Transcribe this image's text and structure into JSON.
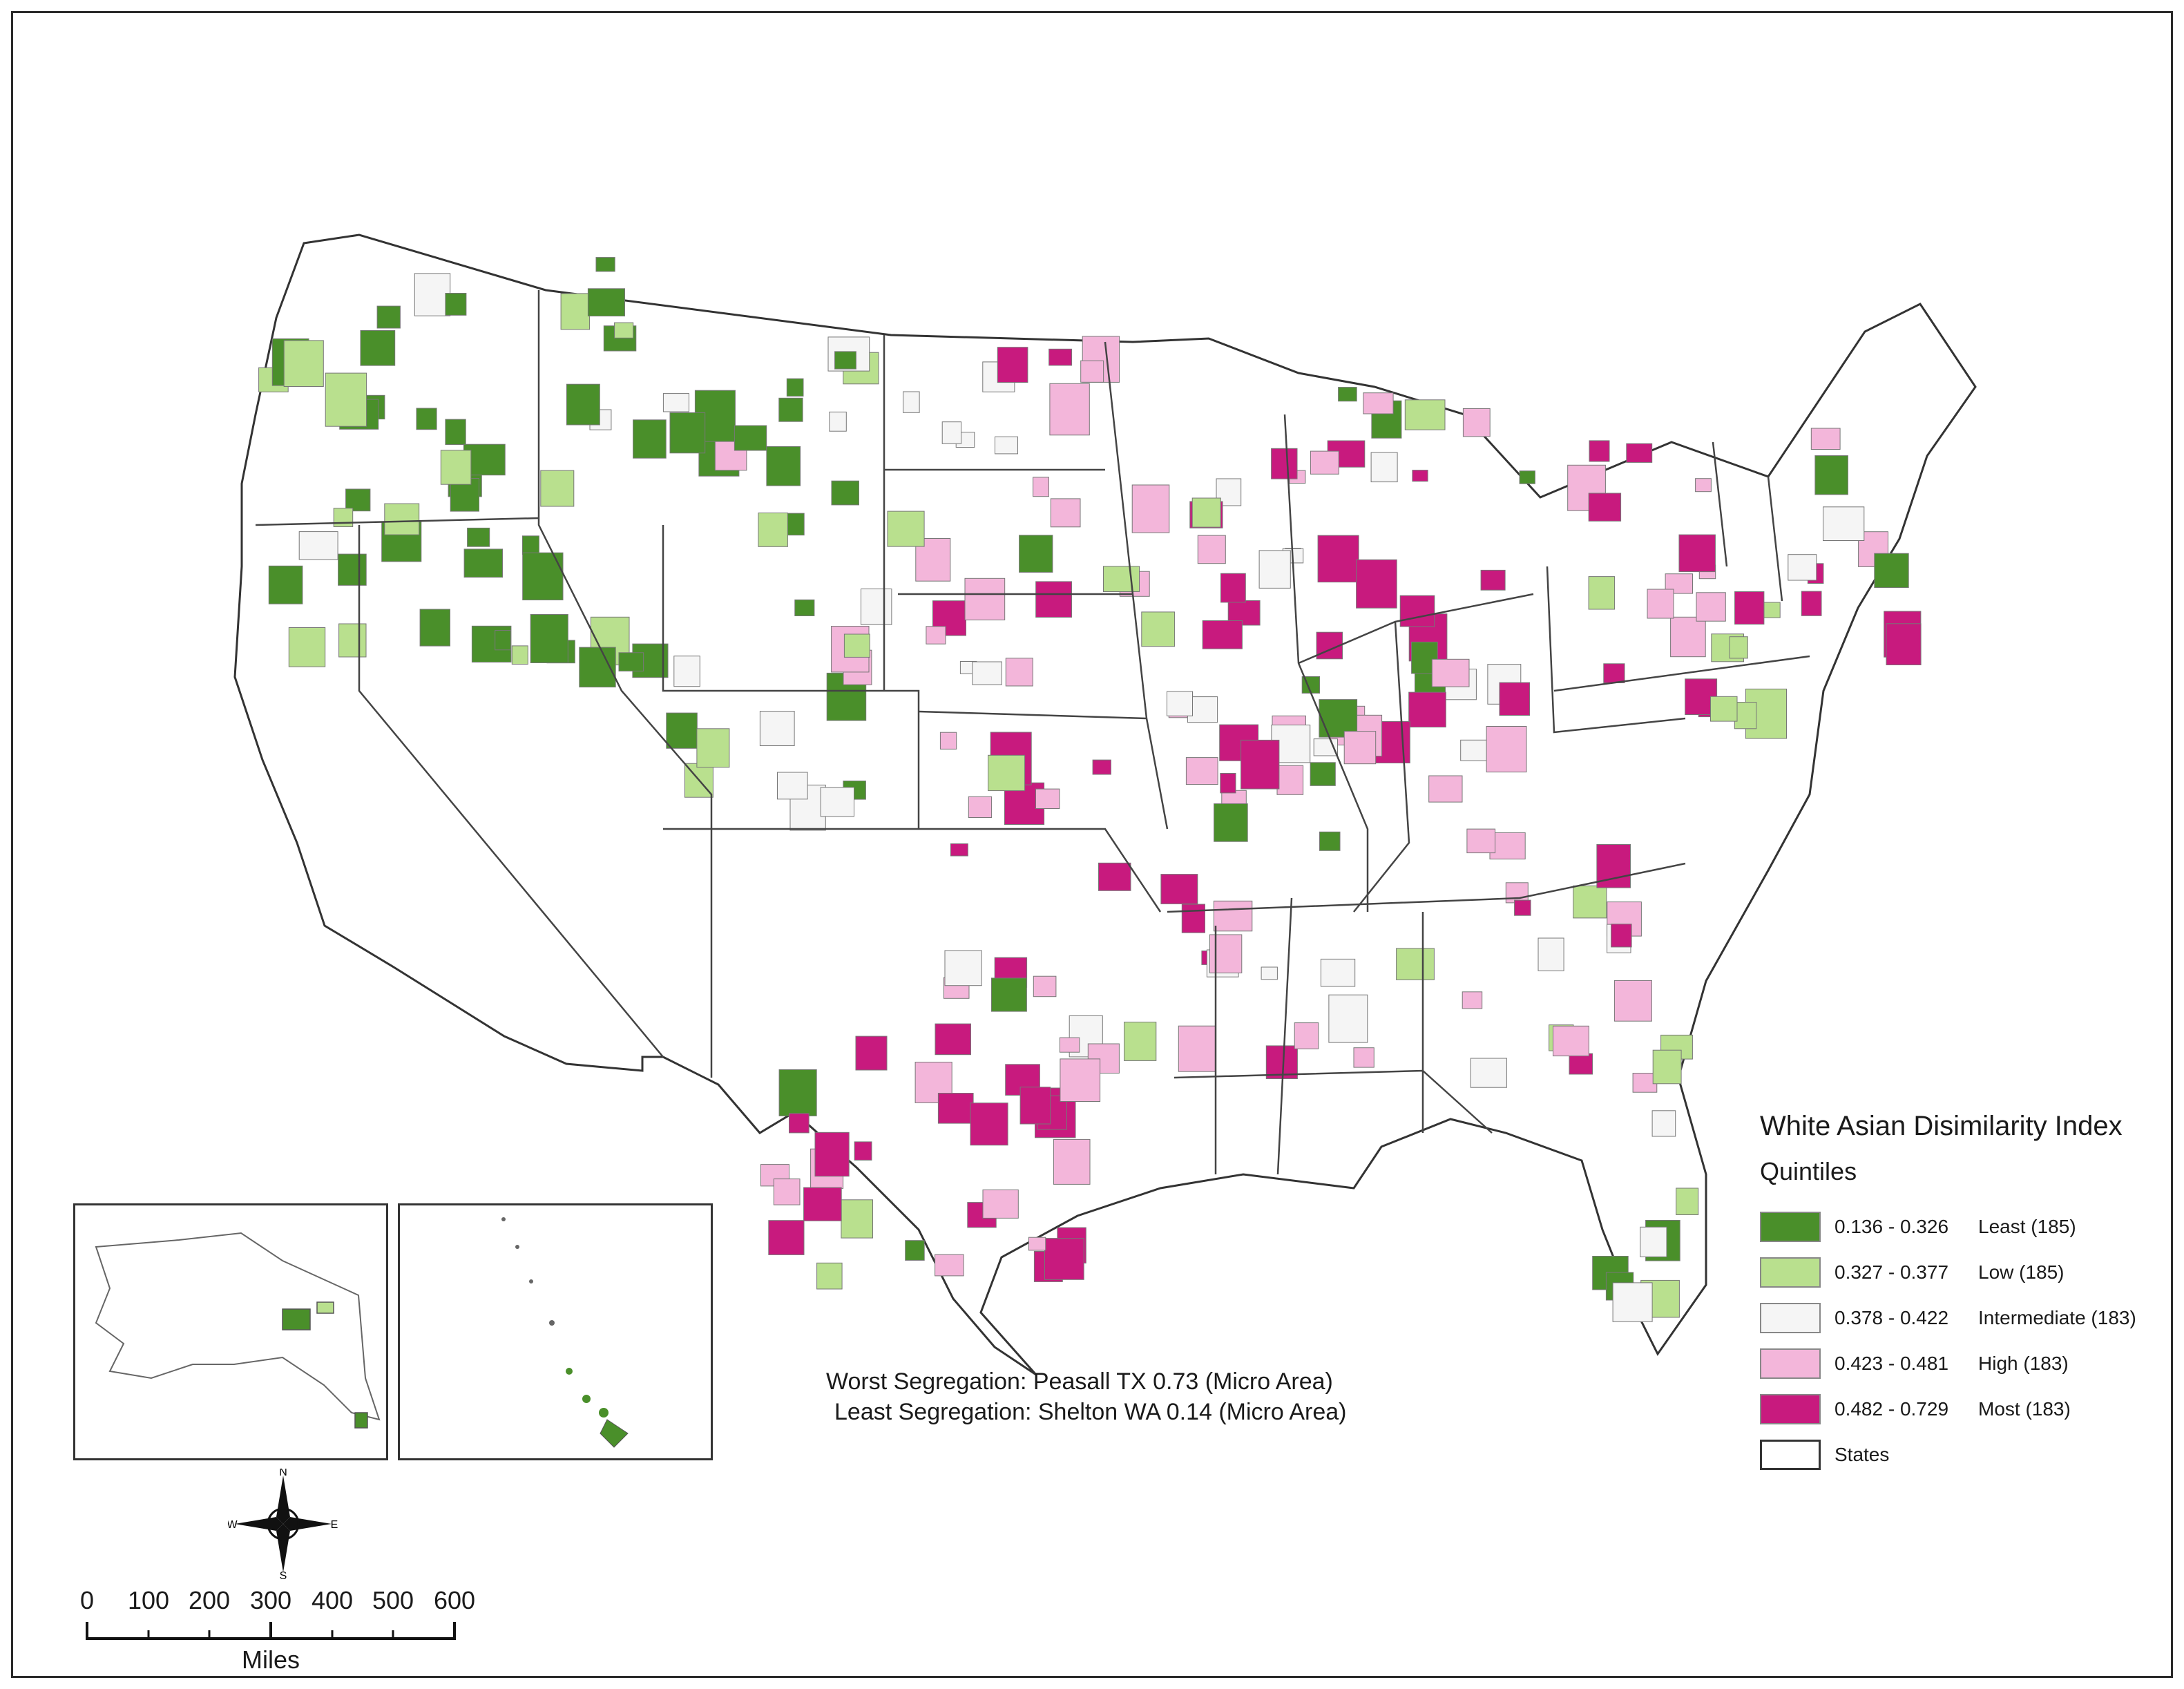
{
  "map": {
    "legend": {
      "title": "White Asian Disimilarity Index",
      "subtitle": "Quintiles",
      "items": [
        {
          "range": "0.136 - 0.326",
          "label": "Least (185)",
          "color": "#4a8f2a"
        },
        {
          "range": "0.327 - 0.377",
          "label": "Low (185)",
          "color": "#b9e08e"
        },
        {
          "range": "0.378 - 0.422",
          "label": "Intermediate (183)",
          "color": "#f5f5f5"
        },
        {
          "range": "0.423 - 0.481",
          "label": "High (183)",
          "color": "#f3b6da"
        },
        {
          "range": "0.482 - 0.729",
          "label": "Most (183)",
          "color": "#c81a7e"
        }
      ],
      "states_label": "States"
    },
    "notes": {
      "worst": "Worst Segregation: Peasall TX  0.73  (Micro Area)",
      "least": "Least Segregation: Shelton WA  0.14  (Micro Area)"
    },
    "scale": {
      "ticks": [
        "0",
        "100",
        "200",
        "300",
        "400",
        "500",
        "600"
      ],
      "units": "Miles"
    },
    "compass": {
      "n": "N",
      "s": "S",
      "e": "E",
      "w": "W"
    }
  }
}
